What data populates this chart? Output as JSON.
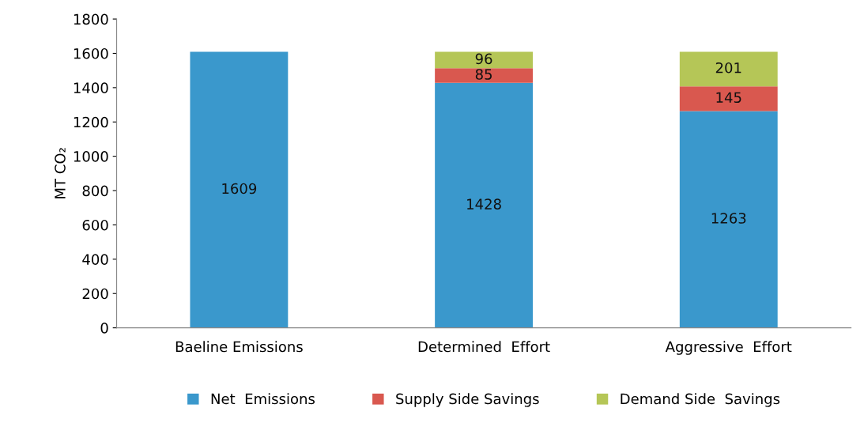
{
  "chart_data": {
    "type": "bar",
    "stacked": true,
    "ylabel": "MT CO₂",
    "categories": [
      "Baeline Emissions",
      "Determined  Effort",
      "Aggressive  Effort"
    ],
    "series": [
      {
        "name": "Net  Emissions",
        "color": "#3a98cc",
        "values": [
          1609,
          1428,
          1263
        ]
      },
      {
        "name": "Supply Side Savings",
        "color": "#d9584f",
        "values": [
          null,
          85,
          145
        ]
      },
      {
        "name": "Demand Side  Savings",
        "color": "#b5c657",
        "values": [
          null,
          96,
          201
        ]
      }
    ],
    "ylim": [
      0,
      1800
    ],
    "yticks": [
      0,
      200,
      400,
      600,
      800,
      1000,
      1200,
      1400,
      1600,
      1800
    ],
    "data_labels": true,
    "legend": "bottom",
    "grid": false
  }
}
